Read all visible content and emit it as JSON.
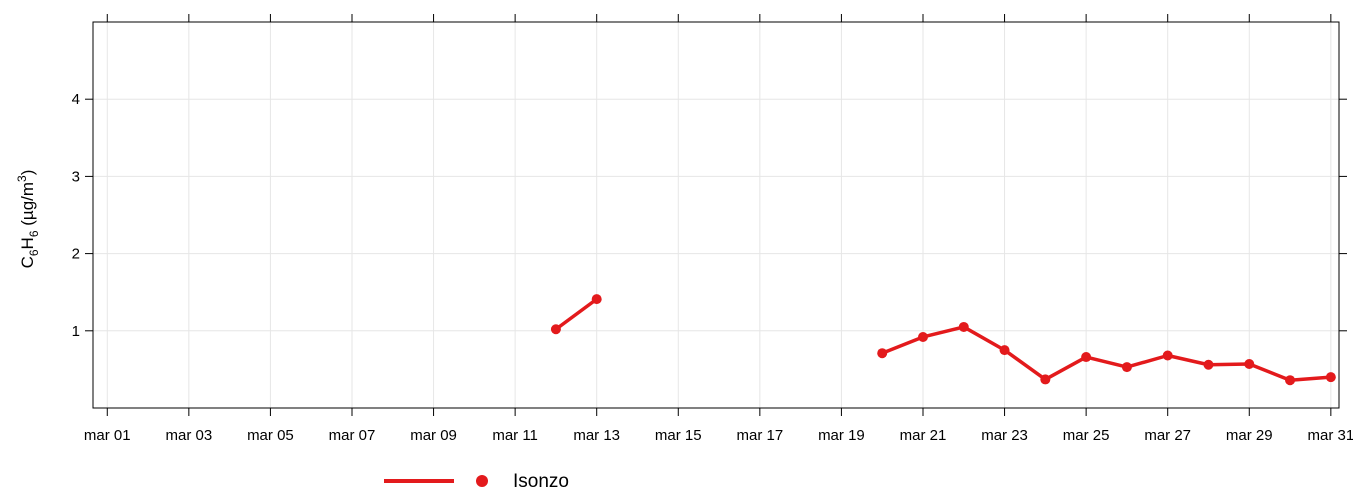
{
  "chart_data": {
    "type": "line",
    "title": "",
    "ylabel": {
      "main": "C",
      "sub1": "6",
      "mid": "H",
      "sub2": "6",
      "unit_open": " (µg/m",
      "sup": "3",
      "unit_close": ")"
    },
    "xlabel": "",
    "x_ticks": [
      "mar 01",
      "mar 03",
      "mar 05",
      "mar 07",
      "mar 09",
      "mar 11",
      "mar 13",
      "mar 15",
      "mar 17",
      "mar 19",
      "mar 21",
      "mar 23",
      "mar 25",
      "mar 27",
      "mar 29",
      "mar 31"
    ],
    "y_ticks": [
      1,
      2,
      3,
      4
    ],
    "xlim": [
      0.65,
      31.2
    ],
    "ylim": [
      0,
      5
    ],
    "grid": true,
    "legend_position": "bottom",
    "series": [
      {
        "name": "Isonzo",
        "color": "#e31a1c",
        "x": [
          1,
          2,
          3,
          4,
          5,
          6,
          7,
          8,
          9,
          10,
          11,
          12,
          13,
          14,
          15,
          16,
          17,
          18,
          19,
          20,
          21,
          22,
          23,
          24,
          25,
          26,
          27,
          28,
          29,
          30,
          31
        ],
        "y": [
          null,
          null,
          null,
          null,
          null,
          null,
          null,
          null,
          null,
          null,
          null,
          1.02,
          1.41,
          null,
          null,
          null,
          null,
          null,
          null,
          0.71,
          0.92,
          1.05,
          0.75,
          0.37,
          0.66,
          0.53,
          0.68,
          0.56,
          0.57,
          0.36,
          0.4
        ]
      }
    ]
  }
}
